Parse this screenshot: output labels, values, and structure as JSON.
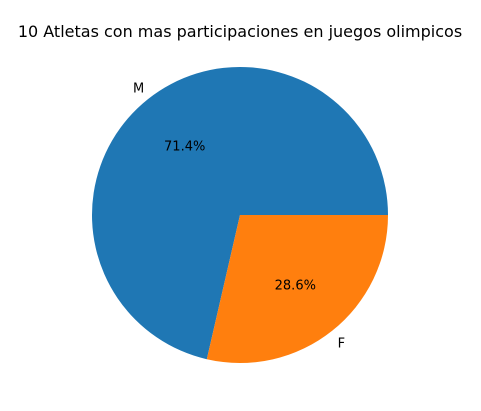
{
  "chart_data": {
    "type": "pie",
    "title": "10 Atletas con mas participaciones en juegos olimpicos",
    "categories": [
      "M",
      "F"
    ],
    "values": [
      71.4,
      28.6
    ],
    "value_labels": [
      "71.4%",
      "28.6%"
    ],
    "colors": [
      "#1f77b4",
      "#ff7f0e"
    ],
    "start_angle_deg": 0,
    "direction": "counterclockwise",
    "legend": "none"
  }
}
